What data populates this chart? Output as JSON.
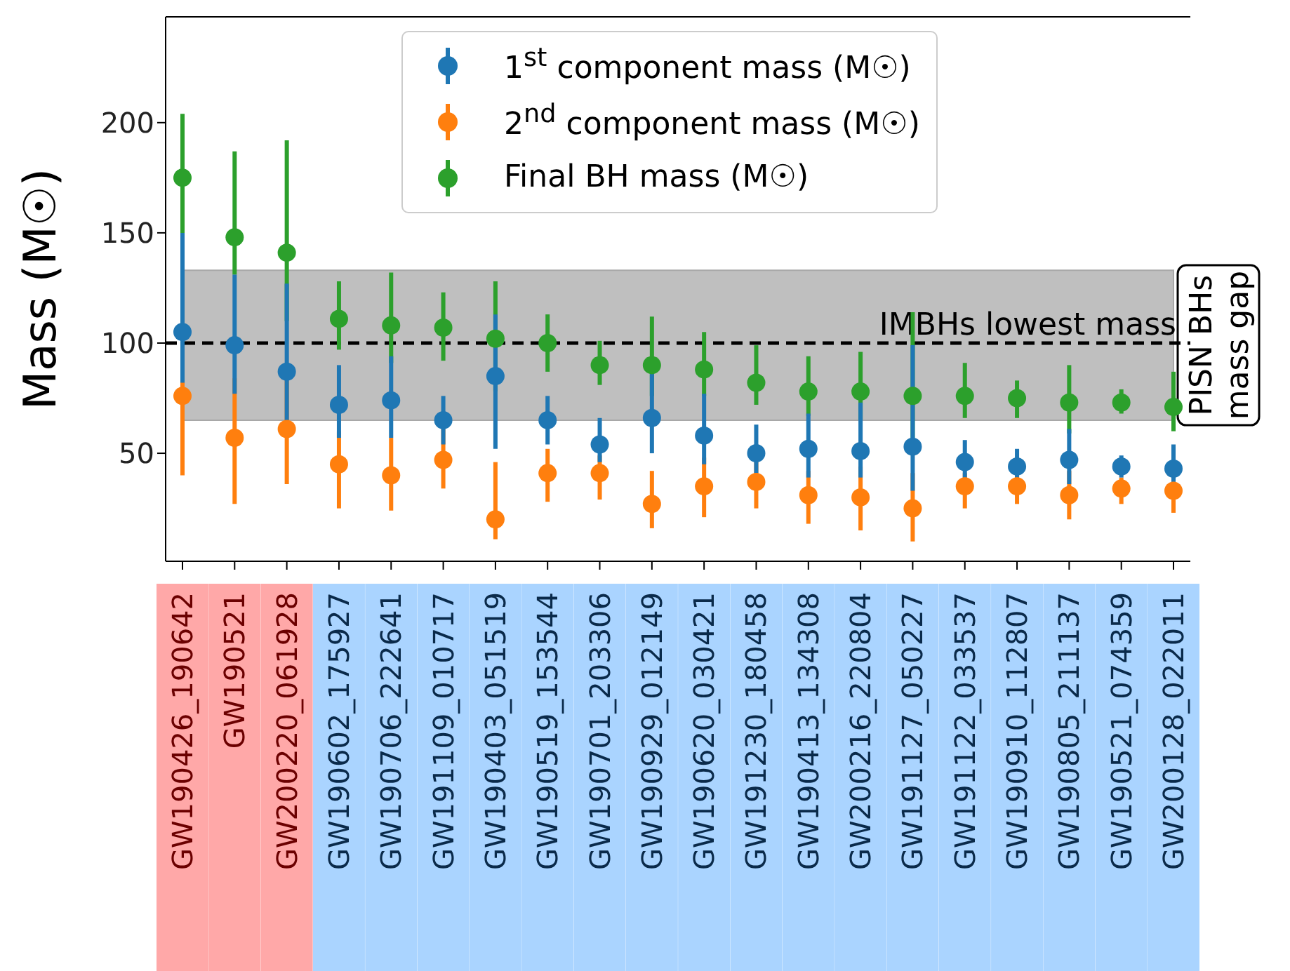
{
  "chart_data": {
    "type": "scatter",
    "ylabel": "Mass (M☉)",
    "categories": [
      "GW190426_190642",
      "GW190521",
      "GW200220_061928",
      "GW190602_175927",
      "GW190706_222641",
      "GW191109_010717",
      "GW190403_051519",
      "GW190519_153544",
      "GW190701_203306",
      "GW190929_012149",
      "GW190620_030421",
      "GW191230_180458",
      "GW190413_134308",
      "GW200216_220804",
      "GW191127_050227",
      "GW191122_033537",
      "GW190910_112807",
      "GW190805_211137",
      "GW190521_074359",
      "GW200128_022011"
    ],
    "series": [
      {
        "name": "1$^{st}$ component mass (M☉)",
        "color": "#1f77b4",
        "values": [
          105,
          99,
          87,
          72,
          74,
          65,
          85,
          65,
          54,
          66,
          58,
          50,
          52,
          51,
          53,
          46,
          44,
          47,
          44,
          43
        ],
        "errors": [
          [
            82,
            150
          ],
          [
            77,
            131
          ],
          [
            63,
            127
          ],
          [
            57,
            90
          ],
          [
            57,
            94
          ],
          [
            54,
            76
          ],
          [
            52,
            113
          ],
          [
            54,
            76
          ],
          [
            46,
            66
          ],
          [
            50,
            86
          ],
          [
            45,
            77
          ],
          [
            41,
            63
          ],
          [
            39,
            68
          ],
          [
            39,
            73
          ],
          [
            33,
            99
          ],
          [
            39,
            56
          ],
          [
            39,
            52
          ],
          [
            36,
            61
          ],
          [
            39,
            49
          ],
          [
            37,
            54
          ]
        ]
      },
      {
        "name": "2$^{nd}$ component mass (M☉)",
        "color": "#ff7f0e",
        "values": [
          76,
          57,
          61,
          45,
          40,
          47,
          20,
          41,
          41,
          27,
          35,
          37,
          31,
          30,
          25,
          35,
          35,
          31,
          34,
          33
        ],
        "errors": [
          [
            40,
            100
          ],
          [
            27,
            84
          ],
          [
            36,
            83
          ],
          [
            25,
            60
          ],
          [
            24,
            57
          ],
          [
            34,
            61
          ],
          [
            11,
            46
          ],
          [
            28,
            52
          ],
          [
            29,
            49
          ],
          [
            16,
            42
          ],
          [
            21,
            48
          ],
          [
            25,
            46
          ],
          [
            18,
            42
          ],
          [
            15,
            44
          ],
          [
            10,
            41
          ],
          [
            25,
            41
          ],
          [
            27,
            40
          ],
          [
            20,
            42
          ],
          [
            27,
            39
          ],
          [
            23,
            38
          ]
        ]
      },
      {
        "name": "Final BH mass (M☉)",
        "color": "#2ca02c",
        "values": [
          175,
          148,
          141,
          111,
          108,
          107,
          102,
          100,
          90,
          90,
          88,
          82,
          78,
          78,
          76,
          76,
          75,
          73,
          73,
          71
        ],
        "errors": [
          [
            141,
            204
          ],
          [
            131,
            187
          ],
          [
            110,
            192
          ],
          [
            97,
            128
          ],
          [
            91,
            132
          ],
          [
            92,
            123
          ],
          [
            78,
            128
          ],
          [
            87,
            113
          ],
          [
            81,
            101
          ],
          [
            76,
            112
          ],
          [
            76,
            105
          ],
          [
            72,
            99
          ],
          [
            67,
            94
          ],
          [
            65,
            96
          ],
          [
            57,
            114
          ],
          [
            66,
            91
          ],
          [
            66,
            83
          ],
          [
            59,
            90
          ],
          [
            68,
            79
          ],
          [
            60,
            87
          ]
        ]
      }
    ],
    "ylim": [
      1,
      248
    ],
    "yticks": [
      50,
      100,
      150,
      200
    ],
    "grid": false,
    "legend": "top",
    "marker": "circle",
    "ref_lines": [
      {
        "axis": "y",
        "value": 100,
        "label": "IMBHs lowest mass",
        "color": "#000000",
        "line_style": "dashed"
      }
    ],
    "bands": [
      {
        "axis": "y",
        "from": 65,
        "to": 133,
        "label": "PISN BHs mass gap",
        "color": "#bfbfbf"
      }
    ]
  }
}
